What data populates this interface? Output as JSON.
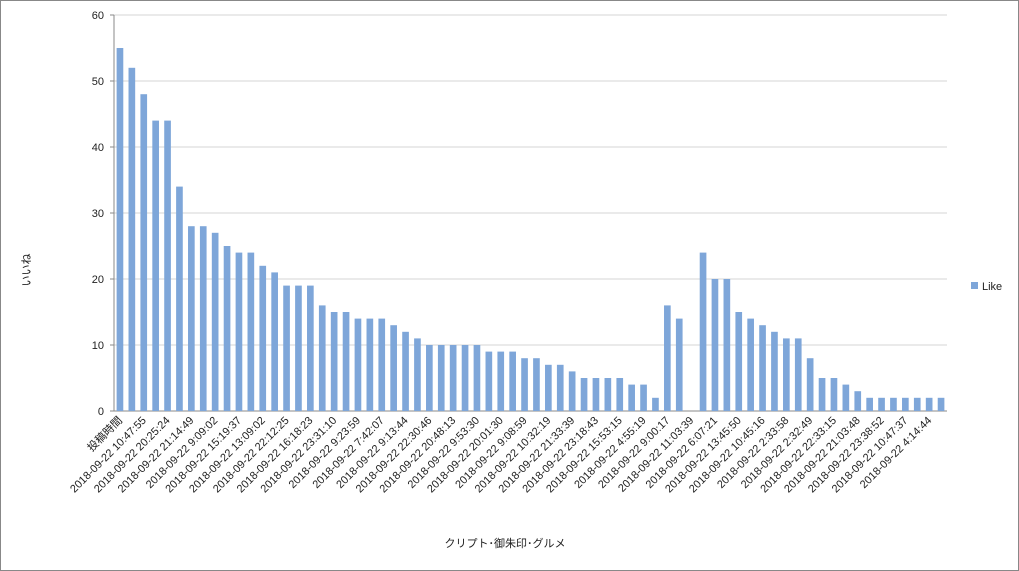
{
  "chart_data": {
    "type": "bar",
    "x_label": "クリプト･御朱印･グルメ",
    "y_label": "いいね",
    "categories": [
      "投稿時間",
      null,
      "2018-09-22 10:47:55",
      null,
      "2018-09-22 20:25:24",
      null,
      "2018-09-22 21:14:49",
      null,
      "2018-09-22 9:09:02",
      null,
      "2018-09-22 15:19:37",
      null,
      "2018-09-22 13:09:02",
      null,
      "2018-09-22 22:12:25",
      null,
      "2018-09-22 16:18:23",
      null,
      "2018-09-22 23:31:10",
      null,
      "2018-09-22 9:23:59",
      null,
      "2018-09-22 7:42:07",
      null,
      "2018-09-22 9:13:44",
      null,
      "2018-09-22 22:30:46",
      null,
      "2018-09-22 20:48:13",
      null,
      "2018-09-22 9:53:30",
      null,
      "2018-09-22 20:01:30",
      null,
      "2018-09-22 9:08:59",
      null,
      "2018-09-22 10:32:19",
      null,
      "2018-09-22 21:33:39",
      null,
      "2018-09-22 23:18:43",
      null,
      "2018-09-22 15:53:15",
      null,
      "2018-09-22 4:55:19",
      null,
      "2018-09-22 9:00:17",
      null,
      "2018-09-22 11:03:39",
      null,
      "2018-09-22 6:07:21",
      null,
      "2018-09-22 13:45:50",
      null,
      "2018-09-22 10:45:16",
      null,
      "2018-09-22 2:33:58",
      null,
      "2018-09-22 2:32:49",
      null,
      "2018-09-22 22:33:15",
      null,
      "2018-09-22 21:03:48",
      null,
      "2018-09-22 23:38:52",
      null,
      "2018-09-22 10:47:37",
      null,
      "2018-09-22 4:14:44",
      null
    ],
    "series": [
      {
        "name": "Like",
        "color": "#7ea6d9",
        "values": [
          55,
          52,
          48,
          44,
          44,
          34,
          28,
          28,
          27,
          25,
          24,
          24,
          22,
          21,
          19,
          19,
          19,
          16,
          15,
          15,
          14,
          14,
          14,
          13,
          12,
          11,
          10,
          10,
          10,
          10,
          10,
          9,
          9,
          9,
          8,
          8,
          7,
          7,
          6,
          5,
          5,
          5,
          5,
          4,
          4,
          2,
          16,
          14,
          0,
          24,
          20,
          20,
          15,
          14,
          13,
          12,
          11,
          11,
          8,
          5,
          5,
          4,
          3,
          2,
          2,
          2,
          2,
          2,
          2,
          2
        ]
      }
    ],
    "ylim": [
      0,
      60
    ],
    "yticks": [
      0,
      10,
      20,
      30,
      40,
      50,
      60
    ],
    "grid": true,
    "legend": "right"
  }
}
